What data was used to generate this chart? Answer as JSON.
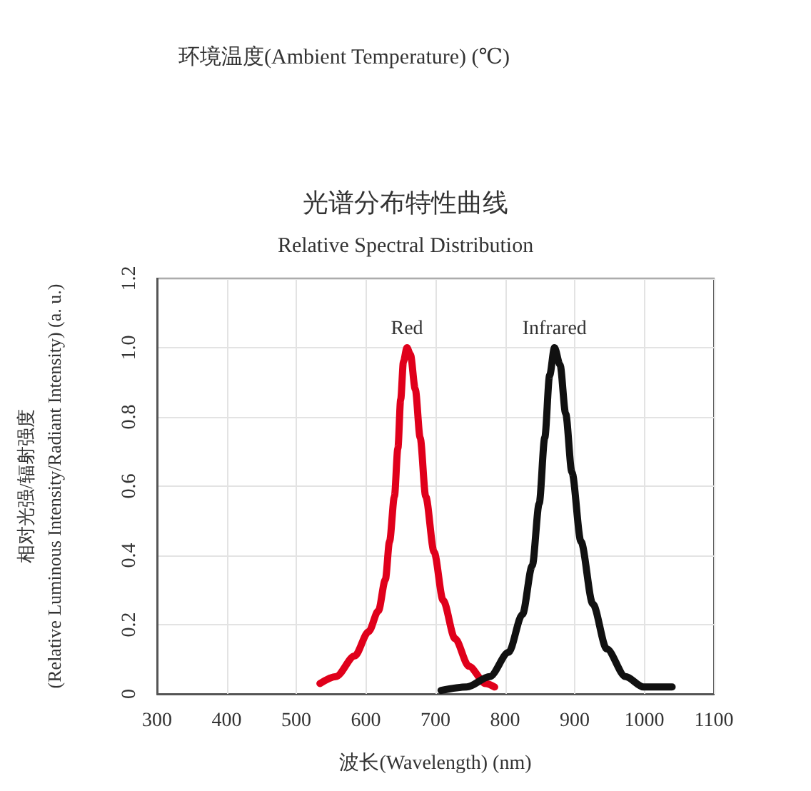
{
  "chart_data": {
    "type": "line",
    "title": "光谱分布特性曲线",
    "subtitle": "Relative Spectral Distribution",
    "xlabel": "波长(Wavelength) (nm)",
    "ylabel": "相对光强/辐射强度\n(Relative Luminous Intensity/Radiant Intensity) (a. u.)",
    "annotations": [
      "环境温度(Ambient Temperature) (℃)"
    ],
    "xlim": [
      300,
      1100
    ],
    "xticks": [
      300,
      400,
      500,
      600,
      700,
      800,
      900,
      1000,
      1100
    ],
    "ylim": [
      0,
      1.2
    ],
    "yticks": [
      0,
      0.2,
      0.4,
      0.6,
      0.8,
      {
        "value": 1,
        "label": "1.0"
      },
      1.2
    ],
    "grid": true,
    "legend": false,
    "marker": "none",
    "line_style": "solid",
    "series": [
      {
        "name": "Red",
        "color": "#e0001b",
        "x": [
          534,
          557,
          584,
          604,
          618,
          628,
          634,
          641,
          646,
          650,
          654,
          659,
          664,
          671,
          678,
          686,
          698,
          711,
          728,
          748,
          772,
          785
        ],
        "values": [
          0.03,
          0.05,
          0.11,
          0.18,
          0.24,
          0.33,
          0.44,
          0.57,
          0.71,
          0.85,
          0.96,
          1.0,
          0.98,
          0.88,
          0.74,
          0.57,
          0.41,
          0.27,
          0.16,
          0.08,
          0.03,
          0.02
        ]
      },
      {
        "name": "Infrared",
        "color": "#111111",
        "x": [
          708,
          745,
          778,
          805,
          825,
          839,
          849,
          857,
          864,
          871,
          879,
          887,
          896,
          909,
          926,
          946,
          973,
          999,
          1040
        ],
        "values": [
          0.01,
          0.02,
          0.05,
          0.12,
          0.23,
          0.37,
          0.55,
          0.74,
          0.92,
          1.0,
          0.95,
          0.81,
          0.64,
          0.44,
          0.26,
          0.13,
          0.05,
          0.02,
          0.02
        ]
      }
    ]
  }
}
